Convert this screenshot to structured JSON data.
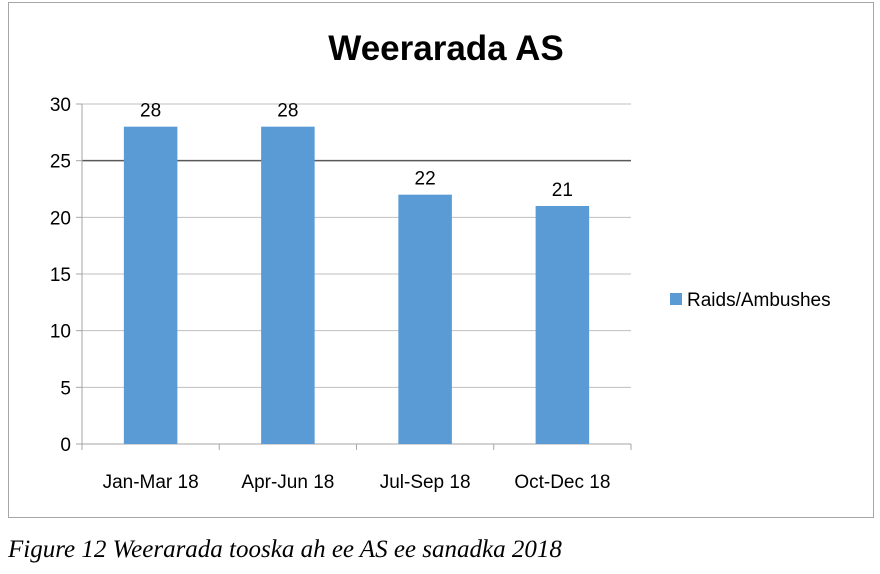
{
  "chart_data": {
    "type": "bar",
    "title": "Weerarada AS",
    "xlabel": "",
    "ylabel": "",
    "categories": [
      "Jan-Mar 18",
      "Apr-Jun 18",
      "Jul-Sep 18",
      "Oct-Dec 18"
    ],
    "series": [
      {
        "name": "Raids/Ambushes",
        "values": [
          28,
          28,
          22,
          21
        ]
      }
    ],
    "ylim": [
      0,
      30
    ],
    "yticks": [
      0,
      5,
      10,
      15,
      20,
      25,
      30
    ],
    "grid": true,
    "legend": "right",
    "data_labels": true,
    "colors": {
      "bar": "#5b9bd5",
      "grid": "#bfbfbf",
      "axis": "#a6a6a6",
      "highlight_line": "#595959"
    },
    "highlight_y": 25
  },
  "caption": "Figure 12 Weerarada tooska ah ee AS ee sanadka 2018"
}
